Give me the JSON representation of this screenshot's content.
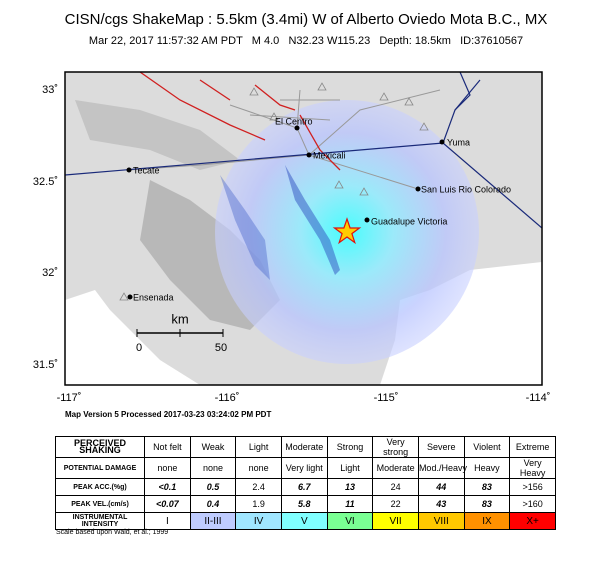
{
  "header": {
    "title": "CISN/cgs ShakeMap : 5.5km (3.4mi) W of Alberto Oviedo Mota B.C., MX",
    "subtitle": "Mar 22, 2017 11:57:32 AM PDT   M 4.0   N32.23 W115.23   Depth: 18.5km   ID:37610567"
  },
  "map": {
    "lat_labels": [
      "33˚",
      "32.5˚",
      "32˚",
      "31.5˚"
    ],
    "lon_labels": [
      "-117˚",
      "-116˚",
      "-115˚",
      "-114˚"
    ],
    "places": [
      "El Centro",
      "Mexicali",
      "Yuma",
      "Tecate",
      "San Luis Rio Colorado",
      "Guadalupe Victoria",
      "Ensenada"
    ],
    "scale": {
      "unit": "km",
      "start": "0",
      "end": "50"
    },
    "version": "Map Version 5 Processed 2017-03-23 03:24:02 PM PDT"
  },
  "legend": {
    "rows": [
      {
        "label": "PERCEIVED SHAKING",
        "cells": [
          "Not felt",
          "Weak",
          "Light",
          "Moderate",
          "Strong",
          "Very strong",
          "Severe",
          "Violent",
          "Extreme"
        ]
      },
      {
        "label": "POTENTIAL DAMAGE",
        "cells": [
          "none",
          "none",
          "none",
          "Very light",
          "Light",
          "Moderate",
          "Mod./Heavy",
          "Heavy",
          "Very Heavy"
        ]
      },
      {
        "label": "PEAK ACC.(%g)",
        "cells": [
          "<0.1",
          "0.5",
          "2.4",
          "6.7",
          "13",
          "24",
          "44",
          "83",
          ">156"
        ]
      },
      {
        "label": "PEAK VEL.(cm/s)",
        "cells": [
          "<0.07",
          "0.4",
          "1.9",
          "5.8",
          "11",
          "22",
          "43",
          "83",
          ">160"
        ]
      },
      {
        "label": "INSTRUMENTAL INTENSITY",
        "cells": [
          "I",
          "II-III",
          "IV",
          "V",
          "VI",
          "VII",
          "VIII",
          "IX",
          "X+"
        ]
      }
    ],
    "intensity_colors": [
      "#ffffff",
      "#bfccff",
      "#a0e6ff",
      "#80ffff",
      "#7aff93",
      "#ffff00",
      "#ffc800",
      "#ff9100",
      "#ff0000"
    ],
    "footnote": "Scale based upon Wald, et al.; 1999"
  }
}
